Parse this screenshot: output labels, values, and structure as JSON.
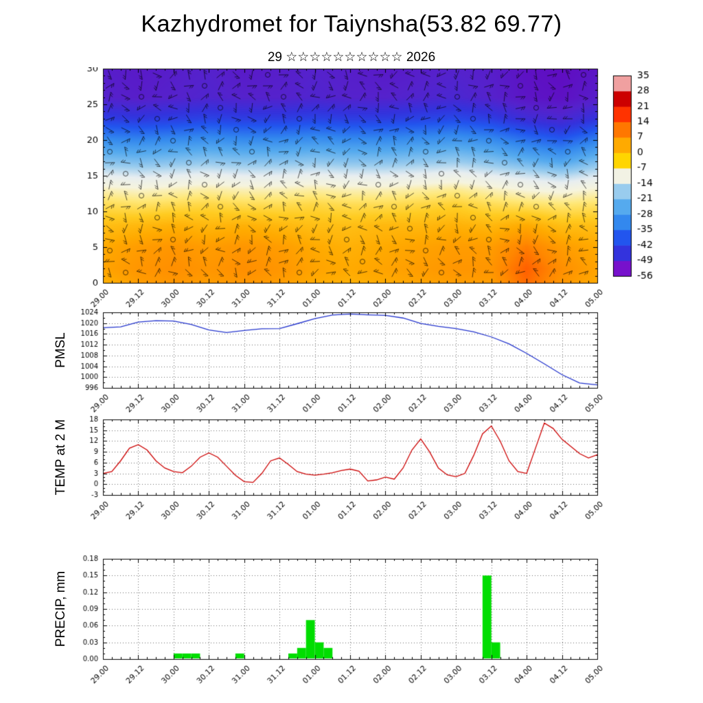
{
  "title": "Kazhydromet for Taiynsha(53.82 69.77)",
  "subtitle": "29 ☆☆☆☆☆☆☆☆☆☆ 2026",
  "x_axis": {
    "tick_labels": [
      "29.00",
      "29.12",
      "30.00",
      "30.12",
      "31.00",
      "31.12",
      "01.00",
      "01.12",
      "02.00",
      "02.12",
      "03.00",
      "03.12",
      "04.00",
      "04.12",
      "05.00"
    ],
    "hours_range": [
      0,
      168
    ],
    "major_step_hours": 12,
    "minor_step_hours": 3
  },
  "colorbar": {
    "labels": [
      "35",
      "28",
      "21",
      "14",
      "7",
      "0",
      "-7",
      "-14",
      "-21",
      "-28",
      "-35",
      "-42",
      "-49",
      "-56"
    ],
    "colors_bottom_to_top": [
      "#7711cc",
      "#3333dd",
      "#2255ee",
      "#3388ee",
      "#55aaee",
      "#99ccee",
      "#f2f2e4",
      "#ffd500",
      "#ffaa00",
      "#ff7700",
      "#ff3300",
      "#cc0000",
      "#f0a0a0"
    ]
  },
  "panels": {
    "pmsl_label": "PMSL",
    "temp_label": "TEMP at 2 M",
    "precip_label": "PRECIP, mm"
  },
  "chart_data": [
    {
      "type": "heatmap",
      "name": "upper-air-temperature-cross-section",
      "overlay": "wind-barbs",
      "ylim": [
        0,
        30
      ],
      "yticks": [
        0,
        5,
        10,
        15,
        20,
        25,
        30
      ],
      "xlim_hours": [
        0,
        168
      ],
      "levels": [
        30,
        26,
        23,
        21,
        19,
        17,
        15,
        13,
        11,
        8,
        5,
        2,
        0
      ],
      "column_hours": [
        0,
        12,
        24,
        36,
        48,
        60,
        72,
        84,
        96,
        108,
        120,
        132,
        144,
        156,
        168
      ],
      "values": [
        [
          -53,
          -54,
          -53,
          -52,
          -54,
          -53,
          -52,
          -53,
          -54,
          -53,
          -52,
          -53,
          -56,
          -57,
          -55
        ],
        [
          -52,
          -53,
          -52,
          -51,
          -52,
          -52,
          -51,
          -52,
          -52,
          -51,
          -50,
          -52,
          -55,
          -56,
          -53
        ],
        [
          -44,
          -45,
          -44,
          -43,
          -44,
          -44,
          -43,
          -44,
          -44,
          -43,
          -42,
          -44,
          -48,
          -50,
          -46
        ],
        [
          -36,
          -37,
          -36,
          -35,
          -36,
          -36,
          -35,
          -36,
          -36,
          -35,
          -34,
          -36,
          -40,
          -43,
          -38
        ],
        [
          -28,
          -29,
          -28,
          -27,
          -28,
          -28,
          -27,
          -28,
          -28,
          -27,
          -26,
          -28,
          -32,
          -35,
          -30
        ],
        [
          -21,
          -22,
          -21,
          -20,
          -21,
          -21,
          -20,
          -21,
          -21,
          -20,
          -19,
          -21,
          -24,
          -27,
          -22
        ],
        [
          -13,
          -14,
          -13,
          -12,
          -13,
          -13,
          -12,
          -13,
          -13,
          -12,
          -11,
          -13,
          -15,
          -17,
          -14
        ],
        [
          -6,
          -7,
          -6,
          -5,
          -6,
          -6,
          -5,
          -6,
          -6,
          -5,
          -4,
          -6,
          -8,
          -9,
          -7
        ],
        [
          -1,
          -2,
          -1,
          0,
          -1,
          -1,
          0,
          -1,
          -1,
          0,
          1,
          -1,
          -2,
          -3,
          -2
        ],
        [
          4,
          5,
          6,
          5,
          6,
          5,
          4,
          4,
          5,
          5,
          6,
          5,
          7,
          4,
          4
        ],
        [
          7,
          9,
          10,
          9,
          10,
          9,
          7,
          6,
          7,
          8,
          9,
          9,
          13,
          9,
          7
        ],
        [
          8,
          10,
          11,
          10,
          11,
          10,
          8,
          7,
          8,
          9,
          10,
          10,
          16,
          11,
          8
        ],
        [
          6,
          9,
          10,
          9,
          10,
          9,
          7,
          6,
          7,
          8,
          9,
          9,
          15,
          10,
          7
        ]
      ],
      "colormap_stops": [
        [
          -60,
          "#6600bb"
        ],
        [
          -52,
          "#5522cc"
        ],
        [
          -46,
          "#3333dd"
        ],
        [
          -40,
          "#2255ee"
        ],
        [
          -33,
          "#3388ee"
        ],
        [
          -26,
          "#55aaee"
        ],
        [
          -19,
          "#99ccee"
        ],
        [
          -13,
          "#e8eef0"
        ],
        [
          -8,
          "#f6f4de"
        ],
        [
          -3,
          "#ffe878"
        ],
        [
          2,
          "#ffcc22"
        ],
        [
          7,
          "#ffaa00"
        ],
        [
          12,
          "#ff8800"
        ],
        [
          17,
          "#ff5500"
        ],
        [
          22,
          "#ee2200"
        ],
        [
          28,
          "#cc0000"
        ],
        [
          35,
          "#f0a0a0"
        ]
      ]
    },
    {
      "type": "line",
      "name": "PMSL",
      "color": "#2233cc",
      "ylim": [
        996,
        1024
      ],
      "yticks": [
        996,
        1000,
        1004,
        1008,
        1012,
        1016,
        1020,
        1024
      ],
      "y_minor_step": 2,
      "x_step_hours": 6,
      "values": [
        1018.3,
        1018.6,
        1020.4,
        1020.9,
        1020.8,
        1019.5,
        1017.5,
        1016.5,
        1017.3,
        1017.9,
        1018.0,
        1019.8,
        1021.7,
        1023.0,
        1023.4,
        1023.1,
        1022.9,
        1021.9,
        1019.9,
        1018.8,
        1018.0,
        1016.8,
        1014.9,
        1012.3,
        1008.8,
        1004.9,
        1000.9,
        997.8,
        997.1
      ]
    },
    {
      "type": "line",
      "name": "TEMP at 2 M",
      "color": "#cc0000",
      "ylim": [
        -3,
        18
      ],
      "yticks": [
        -3,
        0,
        3,
        6,
        9,
        12,
        15,
        18
      ],
      "y_minor_step": 1,
      "x_step_hours": 3,
      "values": [
        3.0,
        3.5,
        6.5,
        10.0,
        11.0,
        9.5,
        6.5,
        4.5,
        3.5,
        3.2,
        5.0,
        7.5,
        8.7,
        7.5,
        5.0,
        2.5,
        0.7,
        0.5,
        3.0,
        6.5,
        7.3,
        5.5,
        3.5,
        2.8,
        2.5,
        2.8,
        3.2,
        3.8,
        4.2,
        3.6,
        0.9,
        1.2,
        2.0,
        1.4,
        4.5,
        9.5,
        12.6,
        9.0,
        4.5,
        2.6,
        2.1,
        3.0,
        8.0,
        14.0,
        16.2,
        12.0,
        6.5,
        3.5,
        3.0,
        10.0,
        17.0,
        15.5,
        12.5,
        10.5,
        8.5,
        7.3,
        8.2
      ]
    },
    {
      "type": "bar",
      "name": "PRECIP, mm",
      "color": "#00dd00",
      "ylim": [
        0,
        0.18
      ],
      "yticks": [
        0,
        0.03,
        0.06,
        0.09,
        0.12,
        0.15,
        0.18
      ],
      "ytick_labels": [
        "0.00",
        "0.03",
        "0.06",
        "0.09",
        "0.12",
        "0.15",
        "0.18"
      ],
      "y_minor_step": 0.01,
      "bar_width_hours": 3,
      "bars": [
        {
          "t": 24,
          "v": 0.01
        },
        {
          "t": 27,
          "v": 0.01
        },
        {
          "t": 30,
          "v": 0.01
        },
        {
          "t": 45,
          "v": 0.01
        },
        {
          "t": 63,
          "v": 0.01
        },
        {
          "t": 66,
          "v": 0.02
        },
        {
          "t": 69,
          "v": 0.07
        },
        {
          "t": 72,
          "v": 0.03
        },
        {
          "t": 75,
          "v": 0.02
        },
        {
          "t": 129,
          "v": 0.15
        },
        {
          "t": 132,
          "v": 0.03
        }
      ]
    }
  ]
}
